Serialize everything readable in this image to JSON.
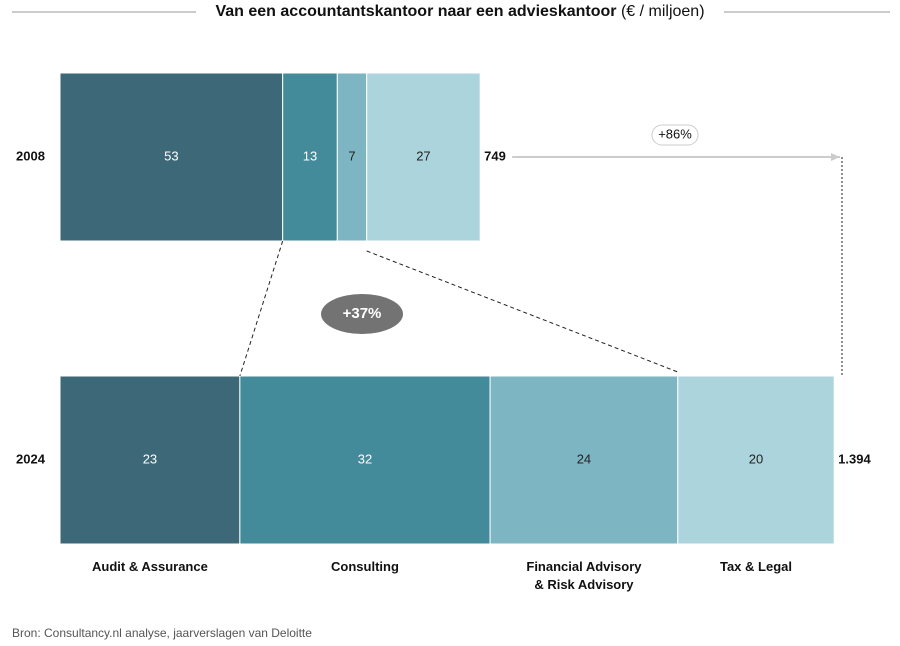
{
  "chart_data": {
    "type": "marimekko",
    "title": "Van een accountantskantoor naar een advieskantoor",
    "title_unit": "(€ / miljoen)",
    "categories": [
      "2008",
      "2024"
    ],
    "totals": {
      "values": [
        749,
        1394
      ],
      "value_labels": [
        "749",
        "1.394"
      ]
    },
    "series": [
      {
        "name": "Audit & Assurance",
        "color": "#3d6878",
        "values": [
          53,
          23
        ]
      },
      {
        "name": "Consulting",
        "color": "#438a9a",
        "values": [
          13,
          32
        ]
      },
      {
        "name": "Financial Advisory & Risk Advisory",
        "color": "#7db5c3",
        "values": [
          7,
          24
        ]
      },
      {
        "name": "Tax & Legal",
        "color": "#acd4dc",
        "values": [
          27,
          20
        ]
      }
    ],
    "annotations": [
      "+86%",
      "+37%"
    ],
    "source": "Bron: Consultancy.nl analyse, jaarverslagen van Deloitte"
  }
}
